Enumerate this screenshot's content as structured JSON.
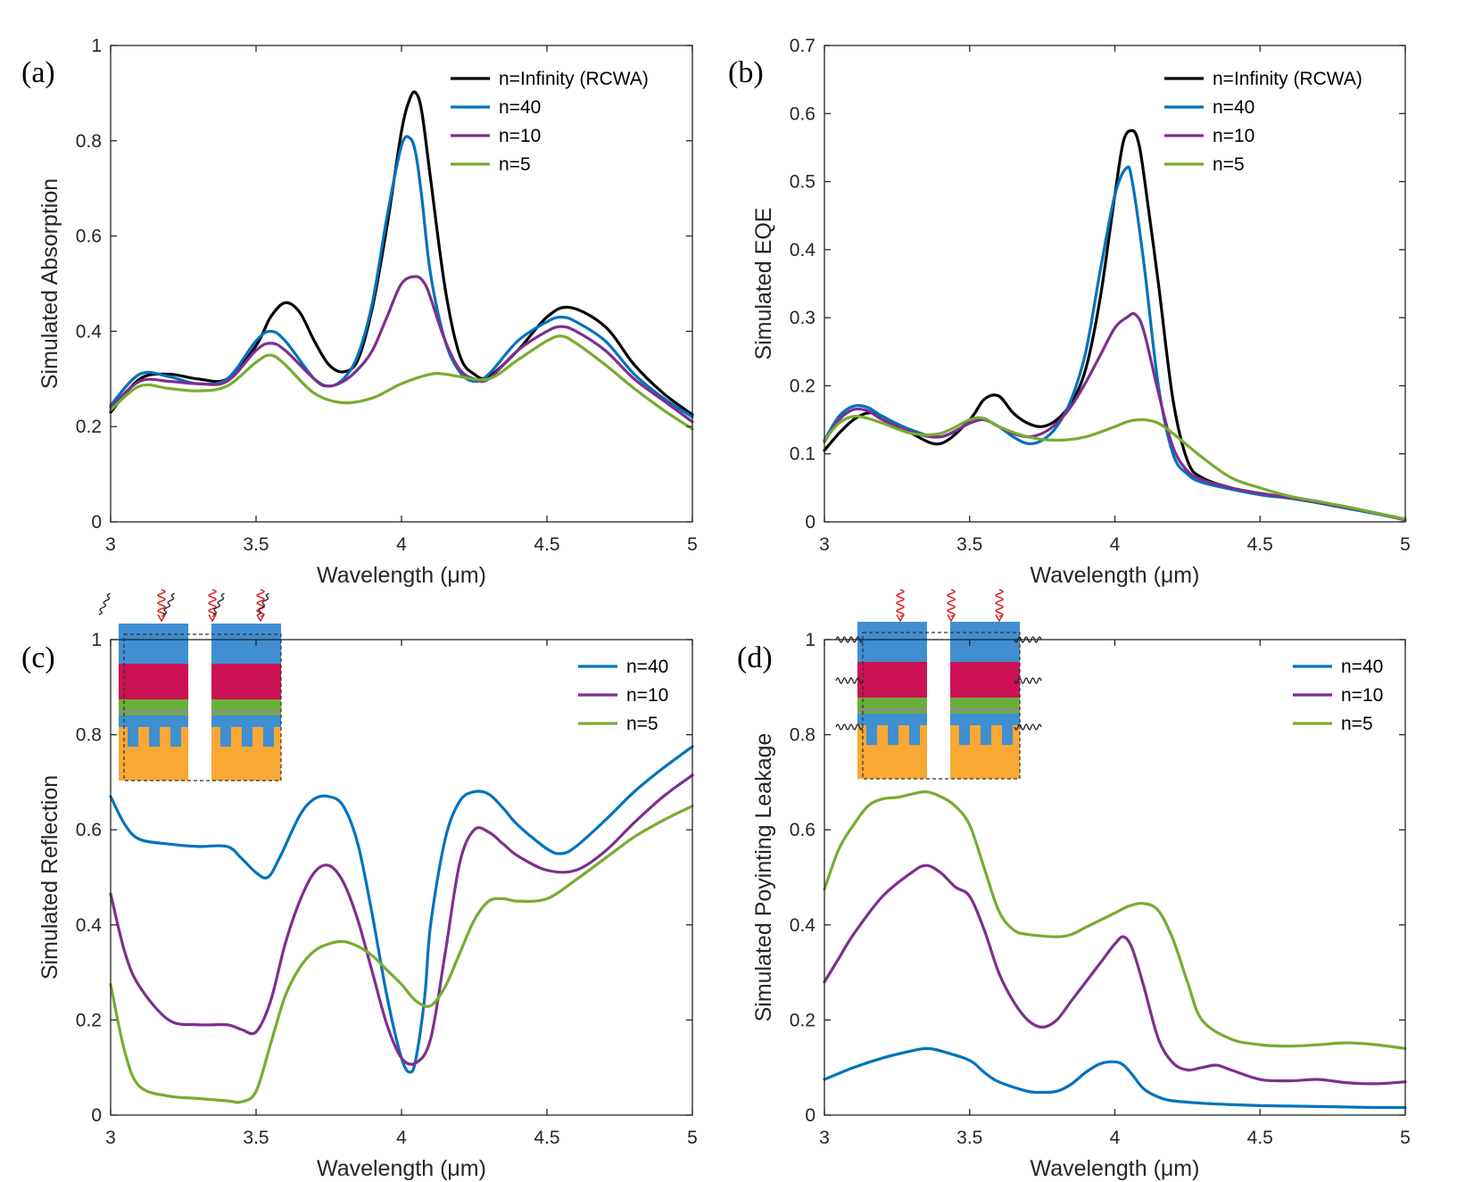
{
  "colors": {
    "black": "#000000",
    "blue": "#0072BD",
    "purple": "#7E2F8E",
    "green": "#77AC30",
    "inset_blue": "#3F8FD2",
    "inset_red": "#CC1154",
    "inset_green": "#6AAF3A",
    "inset_gray": "#8C8C8C",
    "inset_orange": "#F9A834",
    "wave_red": "#E02020"
  },
  "chart_data": [
    {
      "panel": "(a)",
      "type": "line",
      "xlabel": "Wavelength (μm)",
      "ylabel": "Simulated Absorption",
      "xlim": [
        3,
        5
      ],
      "ylim": [
        0,
        1
      ],
      "xticks": [
        "3",
        "3.5",
        "4",
        "4.5",
        "5"
      ],
      "yticks": [
        "0",
        "0.2",
        "0.4",
        "0.6",
        "0.8",
        "1"
      ],
      "legend": "top-right",
      "inset": false,
      "series": [
        {
          "name": "n=Infinity (RCWA)",
          "color": "#000000",
          "x": [
            3.0,
            3.1,
            3.2,
            3.3,
            3.4,
            3.5,
            3.55,
            3.6,
            3.65,
            3.7,
            3.75,
            3.8,
            3.85,
            3.9,
            3.95,
            4.0,
            4.03,
            4.05,
            4.07,
            4.1,
            4.15,
            4.2,
            4.25,
            4.3,
            4.4,
            4.5,
            4.58,
            4.7,
            4.8,
            4.9,
            5.0
          ],
          "y": [
            0.23,
            0.3,
            0.31,
            0.3,
            0.3,
            0.37,
            0.43,
            0.46,
            0.44,
            0.38,
            0.33,
            0.315,
            0.34,
            0.45,
            0.62,
            0.82,
            0.89,
            0.9,
            0.86,
            0.72,
            0.49,
            0.35,
            0.31,
            0.305,
            0.36,
            0.43,
            0.45,
            0.41,
            0.33,
            0.27,
            0.225
          ]
        },
        {
          "name": "n=40",
          "color": "#0072BD",
          "x": [
            3.0,
            3.1,
            3.2,
            3.3,
            3.4,
            3.5,
            3.55,
            3.6,
            3.7,
            3.75,
            3.8,
            3.85,
            3.9,
            3.95,
            4.0,
            4.03,
            4.05,
            4.07,
            4.1,
            4.15,
            4.2,
            4.25,
            4.3,
            4.4,
            4.5,
            4.55,
            4.6,
            4.7,
            4.8,
            4.9,
            5.0
          ],
          "y": [
            0.245,
            0.31,
            0.305,
            0.29,
            0.3,
            0.38,
            0.4,
            0.38,
            0.3,
            0.285,
            0.3,
            0.35,
            0.46,
            0.64,
            0.79,
            0.805,
            0.77,
            0.68,
            0.52,
            0.38,
            0.315,
            0.295,
            0.31,
            0.38,
            0.42,
            0.43,
            0.42,
            0.38,
            0.31,
            0.26,
            0.22
          ]
        },
        {
          "name": "n=10",
          "color": "#7E2F8E",
          "x": [
            3.0,
            3.1,
            3.2,
            3.3,
            3.4,
            3.5,
            3.55,
            3.6,
            3.7,
            3.75,
            3.8,
            3.85,
            3.9,
            3.95,
            4.0,
            4.05,
            4.08,
            4.1,
            4.15,
            4.2,
            4.25,
            4.3,
            4.4,
            4.5,
            4.55,
            4.6,
            4.7,
            4.8,
            4.9,
            5.0
          ],
          "y": [
            0.24,
            0.295,
            0.295,
            0.29,
            0.295,
            0.36,
            0.375,
            0.36,
            0.3,
            0.285,
            0.295,
            0.32,
            0.36,
            0.43,
            0.5,
            0.515,
            0.5,
            0.47,
            0.38,
            0.32,
            0.3,
            0.3,
            0.36,
            0.4,
            0.41,
            0.4,
            0.36,
            0.3,
            0.255,
            0.21
          ]
        },
        {
          "name": "n=5",
          "color": "#77AC30",
          "x": [
            3.0,
            3.1,
            3.2,
            3.3,
            3.4,
            3.5,
            3.55,
            3.6,
            3.7,
            3.8,
            3.9,
            4.0,
            4.1,
            4.15,
            4.2,
            4.3,
            4.4,
            4.5,
            4.55,
            4.6,
            4.7,
            4.8,
            4.9,
            5.0
          ],
          "y": [
            0.235,
            0.285,
            0.28,
            0.275,
            0.285,
            0.335,
            0.35,
            0.33,
            0.27,
            0.25,
            0.26,
            0.29,
            0.31,
            0.31,
            0.305,
            0.3,
            0.34,
            0.38,
            0.39,
            0.375,
            0.33,
            0.28,
            0.235,
            0.195
          ]
        }
      ]
    },
    {
      "panel": "(b)",
      "type": "line",
      "xlabel": "Wavelength (μm)",
      "ylabel": "Simulated EQE",
      "xlim": [
        3,
        5
      ],
      "ylim": [
        0,
        0.7
      ],
      "xticks": [
        "3",
        "3.5",
        "4",
        "4.5",
        "5"
      ],
      "yticks": [
        "0",
        "0.1",
        "0.2",
        "0.3",
        "0.4",
        "0.5",
        "0.6",
        "0.7"
      ],
      "legend": "top-right",
      "inset": false,
      "series": [
        {
          "name": "n=Infinity (RCWA)",
          "color": "#000000",
          "x": [
            3.0,
            3.05,
            3.1,
            3.15,
            3.2,
            3.3,
            3.4,
            3.5,
            3.55,
            3.6,
            3.65,
            3.7,
            3.75,
            3.8,
            3.85,
            3.9,
            3.95,
            4.0,
            4.03,
            4.06,
            4.08,
            4.1,
            4.15,
            4.2,
            4.25,
            4.3,
            4.4,
            4.5,
            4.6,
            4.7,
            4.8,
            4.9,
            5.0
          ],
          "y": [
            0.105,
            0.13,
            0.15,
            0.16,
            0.155,
            0.13,
            0.115,
            0.15,
            0.18,
            0.185,
            0.16,
            0.145,
            0.14,
            0.15,
            0.175,
            0.225,
            0.33,
            0.48,
            0.56,
            0.575,
            0.56,
            0.51,
            0.35,
            0.18,
            0.09,
            0.065,
            0.05,
            0.04,
            0.035,
            0.028,
            0.02,
            0.012,
            0.003
          ]
        },
        {
          "name": "n=40",
          "color": "#0072BD",
          "x": [
            3.0,
            3.05,
            3.1,
            3.15,
            3.2,
            3.3,
            3.4,
            3.5,
            3.55,
            3.6,
            3.65,
            3.7,
            3.75,
            3.8,
            3.85,
            3.9,
            3.95,
            4.0,
            4.04,
            4.06,
            4.1,
            4.15,
            4.2,
            4.25,
            4.3,
            4.4,
            4.5,
            4.6,
            4.7,
            4.8,
            4.9,
            5.0
          ],
          "y": [
            0.12,
            0.155,
            0.17,
            0.168,
            0.155,
            0.135,
            0.125,
            0.145,
            0.15,
            0.14,
            0.125,
            0.115,
            0.12,
            0.14,
            0.18,
            0.25,
            0.37,
            0.48,
            0.52,
            0.5,
            0.38,
            0.2,
            0.1,
            0.07,
            0.058,
            0.048,
            0.04,
            0.035,
            0.028,
            0.02,
            0.012,
            0.003
          ]
        },
        {
          "name": "n=10",
          "color": "#7E2F8E",
          "x": [
            3.0,
            3.05,
            3.1,
            3.15,
            3.2,
            3.3,
            3.4,
            3.5,
            3.55,
            3.6,
            3.65,
            3.7,
            3.75,
            3.8,
            3.85,
            3.9,
            3.95,
            4.0,
            4.04,
            4.07,
            4.1,
            4.15,
            4.2,
            4.25,
            4.3,
            4.4,
            4.5,
            4.6,
            4.7,
            4.8,
            4.9,
            5.0
          ],
          "y": [
            0.118,
            0.15,
            0.165,
            0.163,
            0.15,
            0.132,
            0.125,
            0.145,
            0.15,
            0.14,
            0.13,
            0.125,
            0.13,
            0.145,
            0.17,
            0.205,
            0.245,
            0.285,
            0.3,
            0.305,
            0.28,
            0.19,
            0.11,
            0.075,
            0.062,
            0.05,
            0.042,
            0.036,
            0.029,
            0.021,
            0.013,
            0.003
          ]
        },
        {
          "name": "n=5",
          "color": "#77AC30",
          "x": [
            3.0,
            3.05,
            3.1,
            3.15,
            3.2,
            3.3,
            3.4,
            3.5,
            3.55,
            3.6,
            3.7,
            3.8,
            3.9,
            4.0,
            4.05,
            4.1,
            4.15,
            4.2,
            4.3,
            4.4,
            4.5,
            4.6,
            4.7,
            4.8,
            4.9,
            5.0
          ],
          "y": [
            0.12,
            0.145,
            0.155,
            0.152,
            0.145,
            0.13,
            0.13,
            0.15,
            0.152,
            0.14,
            0.125,
            0.12,
            0.125,
            0.14,
            0.148,
            0.15,
            0.145,
            0.13,
            0.095,
            0.065,
            0.05,
            0.038,
            0.03,
            0.022,
            0.013,
            0.004
          ]
        }
      ]
    },
    {
      "panel": "(c)",
      "type": "line",
      "xlabel": "Wavelength (μm)",
      "ylabel": "Simulated Reflection",
      "xlim": [
        3,
        5
      ],
      "ylim": [
        0,
        1
      ],
      "xticks": [
        "3",
        "3.5",
        "4",
        "4.5",
        "5"
      ],
      "yticks": [
        "0",
        "0.2",
        "0.4",
        "0.6",
        "0.8",
        "1"
      ],
      "legend": "top-right",
      "inset": true,
      "series": [
        {
          "name": "n=40",
          "color": "#0072BD",
          "x": [
            3.0,
            3.05,
            3.1,
            3.2,
            3.3,
            3.4,
            3.45,
            3.5,
            3.54,
            3.58,
            3.65,
            3.7,
            3.75,
            3.8,
            3.85,
            3.9,
            3.95,
            4.0,
            4.03,
            4.05,
            4.08,
            4.1,
            4.15,
            4.2,
            4.25,
            4.3,
            4.35,
            4.4,
            4.5,
            4.55,
            4.6,
            4.7,
            4.8,
            4.9,
            5.0
          ],
          "y": [
            0.67,
            0.61,
            0.58,
            0.57,
            0.565,
            0.565,
            0.54,
            0.51,
            0.5,
            0.54,
            0.63,
            0.665,
            0.67,
            0.65,
            0.57,
            0.42,
            0.25,
            0.12,
            0.09,
            0.12,
            0.25,
            0.4,
            0.58,
            0.66,
            0.68,
            0.675,
            0.645,
            0.61,
            0.56,
            0.55,
            0.565,
            0.62,
            0.68,
            0.73,
            0.775
          ]
        },
        {
          "name": "n=10",
          "color": "#7E2F8E",
          "x": [
            3.0,
            3.05,
            3.1,
            3.2,
            3.3,
            3.4,
            3.45,
            3.5,
            3.55,
            3.6,
            3.65,
            3.7,
            3.75,
            3.8,
            3.85,
            3.9,
            3.95,
            4.0,
            4.05,
            4.1,
            4.15,
            4.2,
            4.25,
            4.3,
            4.35,
            4.4,
            4.5,
            4.6,
            4.7,
            4.8,
            4.9,
            5.0
          ],
          "y": [
            0.465,
            0.34,
            0.27,
            0.2,
            0.19,
            0.19,
            0.18,
            0.175,
            0.24,
            0.36,
            0.45,
            0.51,
            0.525,
            0.49,
            0.41,
            0.3,
            0.19,
            0.12,
            0.11,
            0.16,
            0.34,
            0.53,
            0.6,
            0.595,
            0.57,
            0.545,
            0.515,
            0.515,
            0.555,
            0.615,
            0.67,
            0.715
          ]
        },
        {
          "name": "n=5",
          "color": "#77AC30",
          "x": [
            3.0,
            3.05,
            3.1,
            3.2,
            3.3,
            3.4,
            3.45,
            3.5,
            3.55,
            3.6,
            3.65,
            3.7,
            3.75,
            3.8,
            3.85,
            3.9,
            3.95,
            4.0,
            4.05,
            4.1,
            4.15,
            4.2,
            4.25,
            4.3,
            4.35,
            4.4,
            4.5,
            4.6,
            4.7,
            4.8,
            4.9,
            5.0
          ],
          "y": [
            0.275,
            0.13,
            0.06,
            0.04,
            0.035,
            0.03,
            0.028,
            0.05,
            0.15,
            0.25,
            0.31,
            0.345,
            0.36,
            0.365,
            0.355,
            0.335,
            0.305,
            0.275,
            0.24,
            0.23,
            0.27,
            0.34,
            0.41,
            0.45,
            0.455,
            0.45,
            0.455,
            0.495,
            0.54,
            0.585,
            0.62,
            0.65
          ]
        }
      ]
    },
    {
      "panel": "(d)",
      "type": "line",
      "xlabel": "Wavelength (μm)",
      "ylabel": "Simulated Poyinting Leakage",
      "xlim": [
        3,
        5
      ],
      "ylim": [
        0,
        1
      ],
      "xticks": [
        "3",
        "3.5",
        "4",
        "4.5",
        "5"
      ],
      "yticks": [
        "0",
        "0.2",
        "0.4",
        "0.6",
        "0.8",
        "1"
      ],
      "legend": "top-right",
      "inset": true,
      "series": [
        {
          "name": "n=40",
          "color": "#0072BD",
          "x": [
            3.0,
            3.1,
            3.2,
            3.3,
            3.35,
            3.4,
            3.5,
            3.55,
            3.6,
            3.7,
            3.75,
            3.8,
            3.85,
            3.9,
            3.95,
            4.0,
            4.03,
            4.06,
            4.1,
            4.15,
            4.2,
            4.3,
            4.4,
            4.5,
            4.6,
            4.7,
            4.8,
            4.9,
            5.0
          ],
          "y": [
            0.075,
            0.1,
            0.12,
            0.135,
            0.14,
            0.135,
            0.115,
            0.09,
            0.07,
            0.05,
            0.048,
            0.05,
            0.065,
            0.09,
            0.108,
            0.112,
            0.105,
            0.085,
            0.055,
            0.038,
            0.03,
            0.025,
            0.022,
            0.02,
            0.019,
            0.018,
            0.017,
            0.016,
            0.016
          ]
        },
        {
          "name": "n=10",
          "color": "#7E2F8E",
          "x": [
            3.0,
            3.05,
            3.1,
            3.2,
            3.3,
            3.35,
            3.4,
            3.45,
            3.5,
            3.55,
            3.6,
            3.65,
            3.7,
            3.75,
            3.8,
            3.85,
            3.9,
            3.95,
            4.0,
            4.03,
            4.06,
            4.1,
            4.15,
            4.2,
            4.25,
            4.3,
            4.35,
            4.4,
            4.5,
            4.6,
            4.7,
            4.8,
            4.9,
            5.0
          ],
          "y": [
            0.28,
            0.33,
            0.38,
            0.46,
            0.51,
            0.525,
            0.51,
            0.48,
            0.46,
            0.39,
            0.3,
            0.24,
            0.2,
            0.185,
            0.2,
            0.24,
            0.28,
            0.32,
            0.36,
            0.375,
            0.35,
            0.27,
            0.16,
            0.11,
            0.095,
            0.1,
            0.105,
            0.095,
            0.075,
            0.072,
            0.075,
            0.068,
            0.066,
            0.07
          ]
        },
        {
          "name": "n=5",
          "color": "#77AC30",
          "x": [
            3.0,
            3.05,
            3.1,
            3.15,
            3.2,
            3.25,
            3.3,
            3.35,
            3.4,
            3.45,
            3.5,
            3.55,
            3.6,
            3.65,
            3.7,
            3.8,
            3.85,
            3.9,
            3.95,
            4.0,
            4.05,
            4.1,
            4.15,
            4.2,
            4.25,
            4.3,
            4.4,
            4.5,
            4.6,
            4.7,
            4.8,
            4.9,
            5.0
          ],
          "y": [
            0.475,
            0.56,
            0.61,
            0.65,
            0.665,
            0.668,
            0.675,
            0.68,
            0.67,
            0.65,
            0.61,
            0.52,
            0.43,
            0.39,
            0.38,
            0.375,
            0.38,
            0.395,
            0.41,
            0.425,
            0.44,
            0.445,
            0.43,
            0.37,
            0.28,
            0.2,
            0.16,
            0.148,
            0.145,
            0.148,
            0.152,
            0.148,
            0.14
          ]
        }
      ]
    }
  ]
}
